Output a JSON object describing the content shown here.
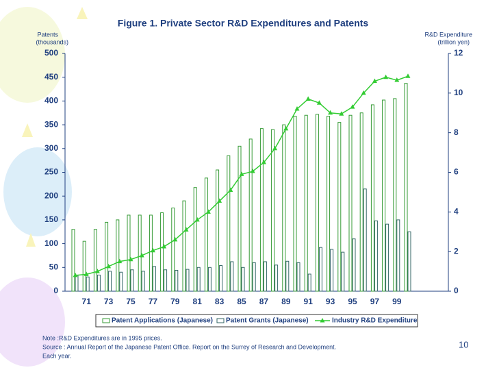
{
  "chart_data": {
    "type": "bar-line",
    "title": "Figure 1. Private Sector R&D Expenditures and Patents",
    "ylabel": [
      "Patents",
      "(thousands)"
    ],
    "y2label": [
      "R&D  Expenditure",
      "(trillion yen)"
    ],
    "categories": [
      null,
      "71",
      null,
      "73",
      null,
      "75",
      null,
      "77",
      null,
      "79",
      null,
      "81",
      null,
      "83",
      null,
      "85",
      null,
      "87",
      null,
      "89",
      null,
      "91",
      null,
      "93",
      null,
      "95",
      null,
      "97",
      null,
      "99",
      null,
      null,
      null,
      null
    ],
    "series": [
      {
        "name": "Patent Applications (Japanese)",
        "kind": "bar",
        "color": "#339933",
        "values": [
          130,
          105,
          130,
          145,
          150,
          160,
          160,
          160,
          165,
          175,
          190,
          218,
          238,
          255,
          285,
          305,
          320,
          342,
          340,
          350,
          368,
          370,
          372,
          368,
          355,
          370,
          375,
          392,
          402,
          405,
          437,
          null,
          null,
          null
        ]
      },
      {
        "name": "Patent Grants (Japanese)",
        "kind": "bar",
        "color": "#336666",
        "values": [
          33,
          30,
          34,
          42,
          40,
          45,
          42,
          52,
          45,
          44,
          46,
          50,
          50,
          54,
          62,
          50,
          60,
          62,
          55,
          63,
          60,
          36,
          92,
          88,
          82,
          110,
          215,
          148,
          141,
          150,
          125,
          null,
          null,
          null
        ]
      },
      {
        "name": "Industry R&D Expenditure",
        "kind": "line",
        "axis": "y2",
        "color": "#33cc33",
        "values": [
          0.8,
          0.85,
          1.0,
          1.25,
          1.5,
          1.6,
          1.8,
          2.05,
          2.25,
          2.6,
          3.1,
          3.6,
          4.0,
          4.55,
          5.1,
          5.9,
          6.05,
          6.5,
          7.2,
          8.2,
          9.2,
          9.7,
          9.5,
          9.0,
          8.95,
          9.3,
          10.0,
          10.6,
          10.8,
          10.65,
          10.85,
          null,
          null,
          null
        ]
      }
    ],
    "ylim": [
      0,
      500
    ],
    "yticks": [
      0,
      50,
      100,
      150,
      200,
      250,
      300,
      350,
      400,
      450,
      500
    ],
    "y2lim": [
      0,
      12
    ],
    "y2ticks": [
      0,
      2,
      4,
      6,
      8,
      10,
      12
    ],
    "legend": "bottom"
  },
  "notes": [
    "Note :R&D Expenditures are in 1995 prices.",
    "Source : Annual Report of the Japanese Patent Office. Report on the Surrey of Research and Development.",
    "Each year."
  ],
  "page_number": "10"
}
